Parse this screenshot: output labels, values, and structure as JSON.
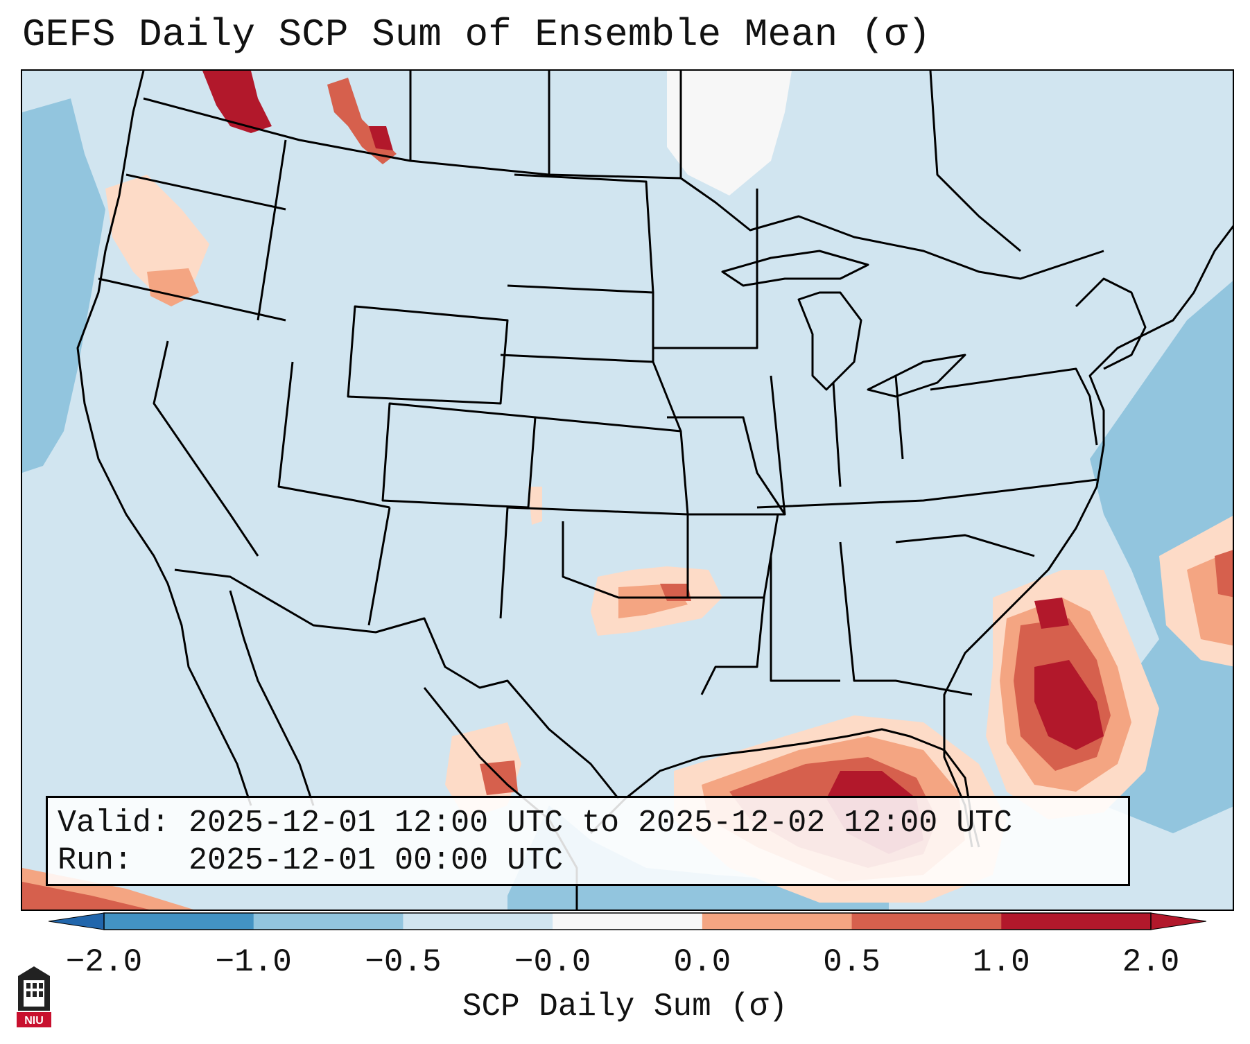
{
  "title": "GEFS Daily SCP Sum of Ensemble Mean (σ)",
  "info": {
    "valid_label": "Valid:",
    "valid_value": "2025-12-01 12:00 UTC to 2025-12-02 12:00 UTC",
    "run_label": "Run:",
    "run_value": "2025-12-01 00:00 UTC"
  },
  "colorbar": {
    "label": "SCP Daily Sum (σ)",
    "ticks": [
      "−2.0",
      "−1.0",
      "−0.5",
      "−0.0",
      "0.0",
      "0.5",
      "1.0",
      "2.0"
    ],
    "colors": [
      "#4393c3",
      "#92c5de",
      "#d1e5f0",
      "#f7f7f7",
      "#fddbc7",
      "#f4a582",
      "#d6604d",
      "#b2182b"
    ],
    "under_color": "#2166ac",
    "over_color": "#67001f"
  },
  "map": {
    "background_color": "#d1e5f0",
    "border_color": "#000000"
  },
  "logo": {
    "text": "NIU",
    "color": "#c8102e"
  }
}
